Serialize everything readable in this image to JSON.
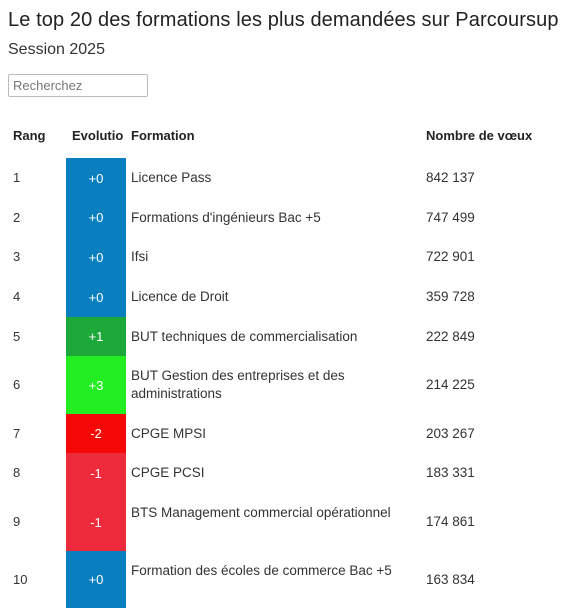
{
  "header": {
    "title": "Le top 20 des formations les plus demandées sur Parcoursup",
    "subtitle": "Session 2025"
  },
  "search": {
    "placeholder": "Recherchez"
  },
  "table": {
    "columns": [
      "Rang",
      "Evolutio",
      "Formation",
      "Nombre de vœux"
    ],
    "rows": [
      {
        "rang": "1",
        "evolution": "+0",
        "formation": "Licence Pass",
        "voeux": "842 137",
        "color": "#0a7fc0"
      },
      {
        "rang": "2",
        "evolution": "+0",
        "formation": "Formations d'ingénieurs Bac +5",
        "voeux": "747 499",
        "color": "#0a7fc0"
      },
      {
        "rang": "3",
        "evolution": "+0",
        "formation": "Ifsi",
        "voeux": "722 901",
        "color": "#0a7fc0"
      },
      {
        "rang": "4",
        "evolution": "+0",
        "formation": "Licence de Droit",
        "voeux": "359 728",
        "color": "#0a7fc0"
      },
      {
        "rang": "5",
        "evolution": "+1",
        "formation": "BUT techniques de commercialisation",
        "voeux": "222 849",
        "color": "#1ea83a"
      },
      {
        "rang": "6",
        "evolution": "+3",
        "formation": "BUT Gestion des entreprises et des administrations",
        "voeux": "214 225",
        "color": "#22ee22"
      },
      {
        "rang": "7",
        "evolution": "-2",
        "formation": "CPGE MPSI",
        "voeux": "203 267",
        "color": "#f40808"
      },
      {
        "rang": "8",
        "evolution": "-1",
        "formation": "CPGE PCSI",
        "voeux": "183 331",
        "color": "#ee2b3c"
      },
      {
        "rang": "9",
        "evolution": "-1",
        "formation": "BTS Management commercial opérationnel",
        "voeux": "174 861",
        "color": "#ee2b3c"
      },
      {
        "rang": "10",
        "evolution": "+0",
        "formation": "Formation des écoles de commerce Bac +5",
        "voeux": "163 834",
        "color": "#0a7fc0"
      }
    ]
  }
}
